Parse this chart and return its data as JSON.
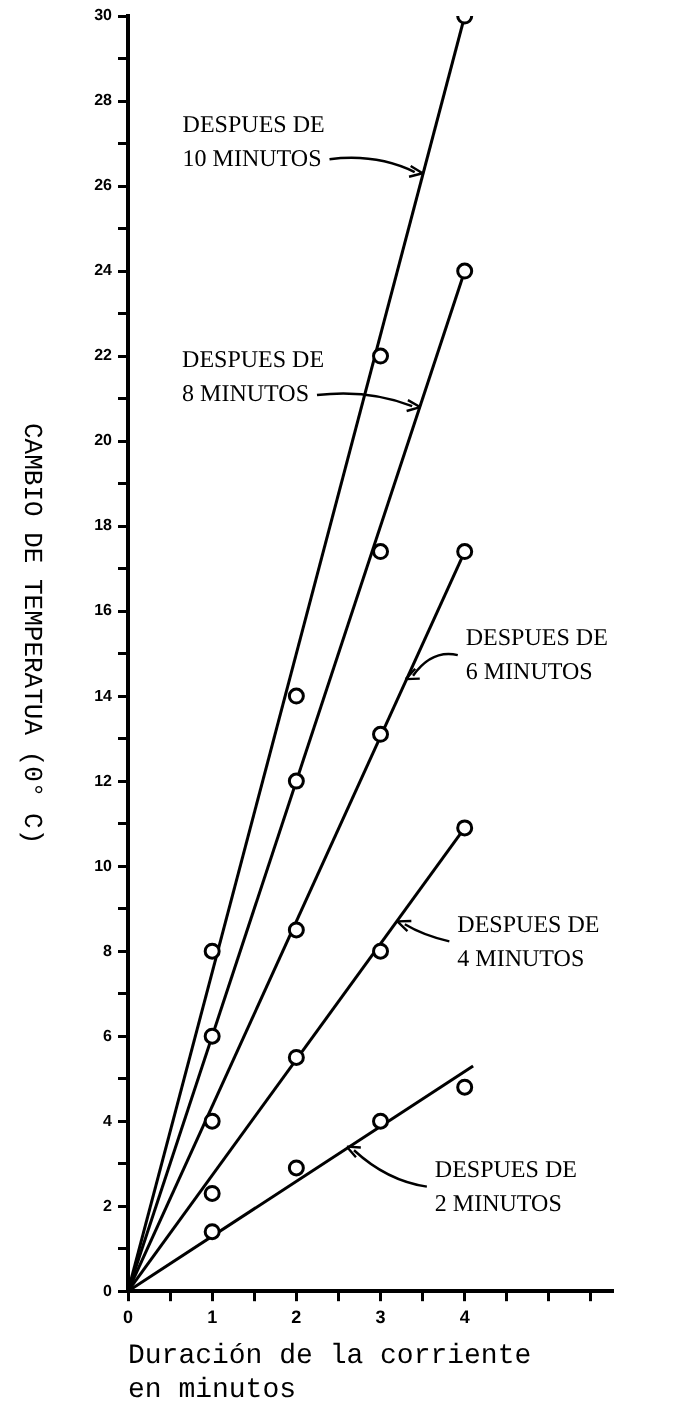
{
  "chart_data": {
    "type": "scatter",
    "xlabel": "Duración de la corriente\nen minutos",
    "ylabel": "CAMBIO DE TEMPERATUA (0° C)",
    "xlim": [
      0,
      5.75
    ],
    "xticks": [
      0,
      {
        "value": 0.5,
        "label": null
      },
      1,
      {
        "value": 1.5,
        "label": null
      },
      2,
      {
        "value": 2.5,
        "label": null
      },
      3,
      {
        "value": 3.5,
        "label": null
      },
      4,
      {
        "value": 4.5,
        "label": null
      },
      {
        "value": 5,
        "label": null
      },
      {
        "value": 5.5,
        "label": null
      }
    ],
    "ylim": [
      0,
      30
    ],
    "yticks": [
      0,
      {
        "value": 1,
        "label": null
      },
      2,
      {
        "value": 3,
        "label": null
      },
      4,
      {
        "value": 5,
        "label": null
      },
      6,
      {
        "value": 7,
        "label": null
      },
      8,
      {
        "value": 9,
        "label": null
      },
      10,
      {
        "value": 11,
        "label": null
      },
      12,
      {
        "value": 13,
        "label": null
      },
      14,
      {
        "value": 15,
        "label": null
      },
      16,
      {
        "value": 17,
        "label": null
      },
      18,
      {
        "value": 19,
        "label": null
      },
      20,
      {
        "value": 21,
        "label": null
      },
      22,
      {
        "value": 23,
        "label": null
      },
      24,
      {
        "value": 25,
        "label": null
      },
      26,
      {
        "value": 27,
        "label": null
      },
      28,
      {
        "value": 29,
        "label": null
      },
      30
    ],
    "grid": false,
    "legend": false,
    "annotations": [
      {
        "text": "DESPUES DE\n10 MINUTOS",
        "x": 3.5,
        "y": 26.3
      },
      {
        "text": "DESPUES DE\n8 MINUTOS",
        "x": 3.47,
        "y": 20.8
      },
      {
        "text": "DESPUES DE\n6 MINUTOS",
        "x": 3.3,
        "y": 14.4
      },
      {
        "text": "DESPUES DE\n4 MINUTOS",
        "x": 3.2,
        "y": 8.7
      },
      {
        "text": "DESPUES DE\n2 MINUTOS",
        "x": 2.6,
        "y": 3.4
      }
    ],
    "series": [
      {
        "marker": "circle",
        "color": "#000000",
        "x": [
          1,
          2,
          3,
          4
        ],
        "values": [
          8,
          14,
          22,
          30
        ]
      },
      {
        "type": "line",
        "marker": "none",
        "color": "#000000",
        "x": [
          0,
          4
        ],
        "values": [
          0,
          30
        ]
      },
      {
        "marker": "circle",
        "color": "#000000",
        "x": [
          1,
          2,
          3,
          4
        ],
        "values": [
          6,
          12,
          17.4,
          24
        ]
      },
      {
        "type": "line",
        "marker": "none",
        "color": "#000000",
        "x": [
          0,
          4
        ],
        "values": [
          0,
          24
        ]
      },
      {
        "marker": "circle",
        "color": "#000000",
        "x": [
          1,
          2,
          3,
          4
        ],
        "values": [
          4,
          8.5,
          13.1,
          17.4
        ]
      },
      {
        "type": "line",
        "marker": "none",
        "color": "#000000",
        "x": [
          0,
          4
        ],
        "values": [
          0,
          17.4
        ]
      },
      {
        "marker": "circle",
        "color": "#000000",
        "x": [
          1,
          2,
          3,
          4
        ],
        "values": [
          2.3,
          5.5,
          8,
          10.9
        ]
      },
      {
        "type": "line",
        "marker": "none",
        "color": "#000000",
        "x": [
          0,
          4
        ],
        "values": [
          0,
          10.9
        ]
      },
      {
        "marker": "circle",
        "color": "#000000",
        "x": [
          1,
          2,
          3,
          4
        ],
        "values": [
          1.4,
          2.9,
          4,
          4.8
        ]
      },
      {
        "type": "line",
        "marker": "none",
        "color": "#000000",
        "x": [
          0,
          4.1
        ],
        "values": [
          0,
          5.3
        ]
      }
    ]
  }
}
